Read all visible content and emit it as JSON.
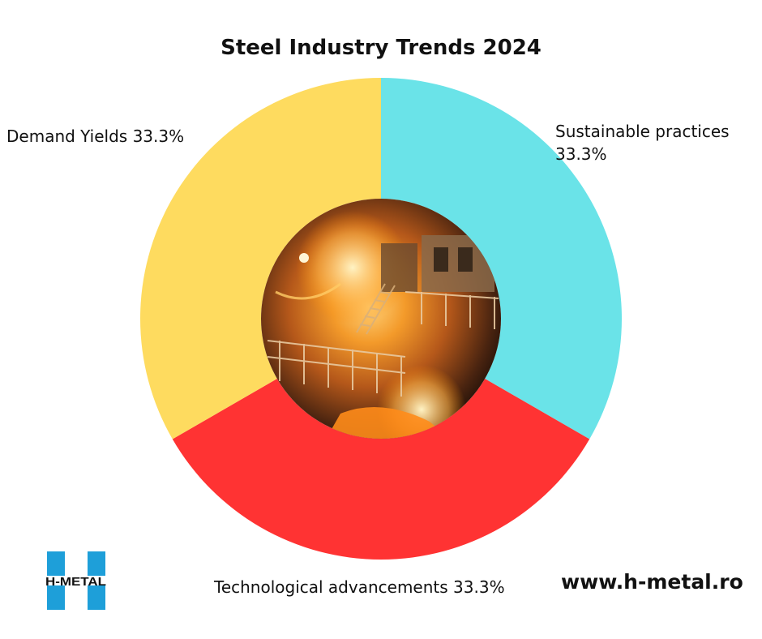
{
  "chart_data": {
    "type": "pie",
    "style": "donut",
    "title": "Steel Industry Trends 2024",
    "slices": [
      {
        "label": "Sustainable practices",
        "value": 33.3,
        "value_label": "33.3%",
        "color": "#6ae3e8"
      },
      {
        "label": "Technological advancements",
        "value": 33.3,
        "value_label": "33.3%",
        "color": "#ff3333"
      },
      {
        "label": "Demand Yields",
        "value": 33.3,
        "value_label": "33.3%",
        "color": "#fedb5f"
      }
    ],
    "center_image": "steel-mill-photo"
  },
  "branding": {
    "logo_text": "H-METAL",
    "logo_color": "#1e9fd9",
    "website": "www.h-metal.ro"
  }
}
